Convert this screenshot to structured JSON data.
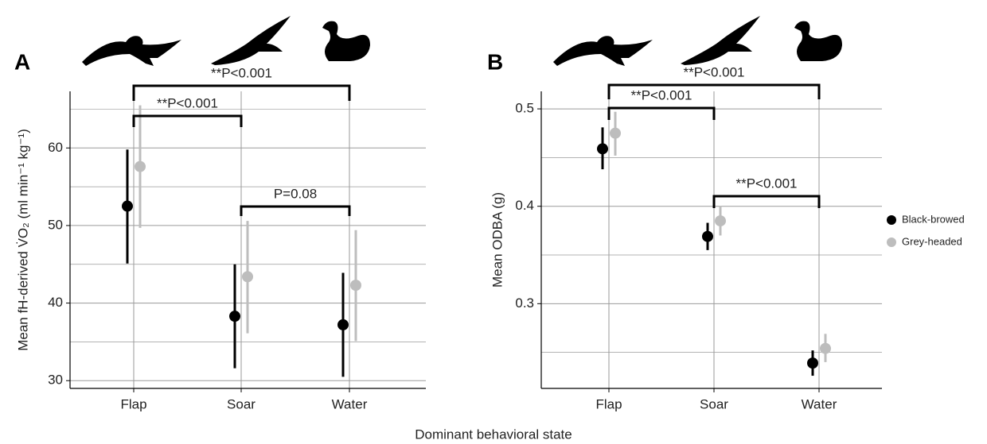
{
  "xlabel": "Dominant behavioral state",
  "chart_data": [
    {
      "type": "pointrange",
      "panel": "A",
      "ylabel": "Mean fH-derived V̇O₂ (ml min⁻¹ kg⁻¹)",
      "categories": [
        "Flap",
        "Soar",
        "Water"
      ],
      "series": [
        {
          "color": "#000000",
          "values": [
            52.5,
            38.3,
            37.2
          ],
          "lower": [
            45.1,
            31.6,
            30.5
          ],
          "upper": [
            59.8,
            45.0,
            43.9
          ]
        },
        {
          "color": "#bdbdbd",
          "values": [
            57.6,
            43.4,
            42.3
          ],
          "lower": [
            49.7,
            36.1,
            35.1
          ],
          "upper": [
            65.5,
            50.6,
            49.4
          ]
        }
      ],
      "ylim": [
        29,
        67.3
      ],
      "yticks": [
        30,
        40,
        50,
        60
      ],
      "minor_yticks": [
        35,
        45,
        55,
        65
      ],
      "grid": true,
      "annotations": [
        "**P<0.001",
        "**P<0.001",
        "P=0.08"
      ]
    },
    {
      "type": "pointrange",
      "panel": "B",
      "ylabel": "Mean ODBA (g)",
      "categories": [
        "Flap",
        "Soar",
        "Water"
      ],
      "series": [
        {
          "name": "Black-browed",
          "color": "#000000",
          "values": [
            0.459,
            0.369,
            0.239
          ],
          "lower": [
            0.438,
            0.355,
            0.226
          ],
          "upper": [
            0.481,
            0.383,
            0.252
          ]
        },
        {
          "name": "Grey-headed",
          "color": "#bdbdbd",
          "values": [
            0.475,
            0.385,
            0.254
          ],
          "lower": [
            0.452,
            0.37,
            0.24
          ],
          "upper": [
            0.497,
            0.4,
            0.269
          ]
        }
      ],
      "ylim": [
        0.213,
        0.518
      ],
      "yticks": [
        0.3,
        0.4,
        0.5
      ],
      "minor_yticks": [
        0.25,
        0.35,
        0.45
      ],
      "grid": true,
      "annotations": [
        "**P<0.001",
        "**P<0.001",
        "**P<0.001"
      ]
    }
  ]
}
